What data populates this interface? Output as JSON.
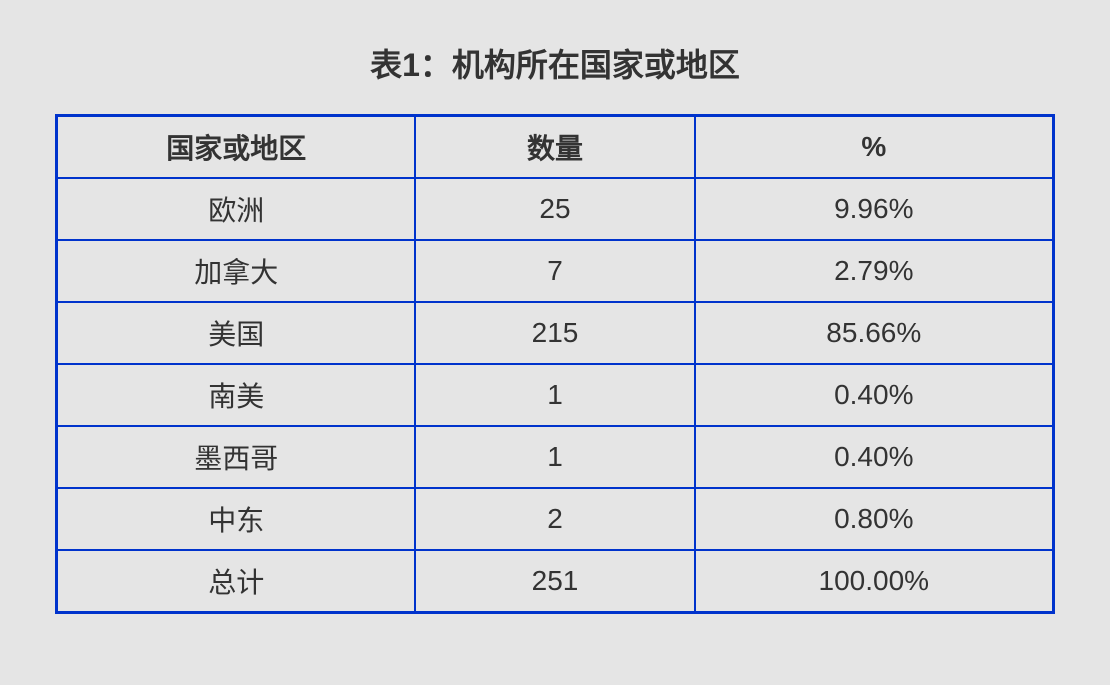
{
  "title": "表1：机构所在国家或地区",
  "table": {
    "type": "table",
    "border_color": "#0033cc",
    "outer_border_width": 3,
    "inner_border_width": 2,
    "background_color": "#e5e5e5",
    "text_color": "#333333",
    "header_fontsize": 28,
    "header_fontweight": "bold",
    "cell_fontsize": 28,
    "cell_fontweight": "normal",
    "column_widths_percent": [
      36,
      28,
      36
    ],
    "columns": [
      "国家或地区",
      "数量",
      "%"
    ],
    "rows": [
      [
        "欧洲",
        "25",
        "9.96%"
      ],
      [
        "加拿大",
        "7",
        "2.79%"
      ],
      [
        "美国",
        "215",
        "85.66%"
      ],
      [
        "南美",
        "1",
        "0.40%"
      ],
      [
        "墨西哥",
        "1",
        "0.40%"
      ],
      [
        "中东",
        "2",
        "0.80%"
      ],
      [
        "总计",
        "251",
        "100.00%"
      ]
    ]
  },
  "page_background_color": "#e5e5e5"
}
